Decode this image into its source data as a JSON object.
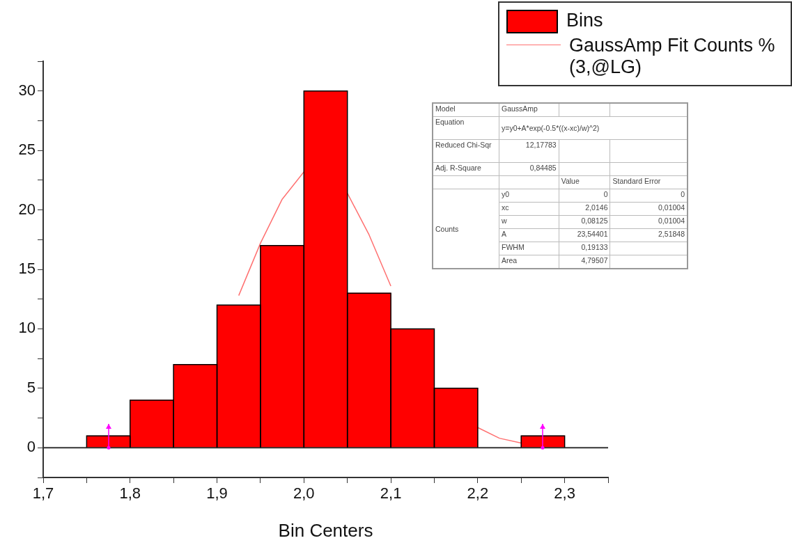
{
  "chart_data": {
    "type": "histogram",
    "xlabel": "Bin Centers",
    "bins": [
      1.75,
      1.8,
      1.85,
      1.9,
      1.95,
      2.0,
      2.05,
      2.1,
      2.15,
      2.2,
      2.25,
      2.3
    ],
    "series": [
      {
        "name": "Bins",
        "color": "#ff0000",
        "values": [
          1,
          4,
          7,
          12,
          17,
          30,
          13,
          10,
          5,
          0,
          1
        ],
        "errors": [
          1,
          null,
          null,
          null,
          null,
          null,
          null,
          null,
          null,
          null,
          1
        ]
      },
      {
        "name": "GaussAmp Fit Counts % (3,@LG)",
        "type": "line",
        "color": "#ff7070",
        "x": [
          1.925,
          1.95,
          1.975,
          2.0,
          2.0146,
          2.025,
          2.05,
          2.075,
          2.1,
          2.125,
          2.15,
          2.175,
          2.2,
          2.225,
          2.25
        ],
        "values": [
          12.8,
          17.2,
          20.9,
          23.2,
          null,
          null,
          21.4,
          17.9,
          13.6,
          null,
          null,
          null,
          1.7,
          0.8,
          0.4
        ]
      }
    ],
    "ref_lines": [
      {
        "axis": "y",
        "value": 0,
        "color": "#333333"
      }
    ],
    "xlim": [
      1.7,
      2.35
    ],
    "xticks": [
      {
        "value": 1.7,
        "label": "1,7"
      },
      {
        "value": 1.75,
        "label": null
      },
      {
        "value": 1.8,
        "label": "1,8"
      },
      {
        "value": 1.85,
        "label": null
      },
      {
        "value": 1.9,
        "label": "1,9"
      },
      {
        "value": 1.95,
        "label": null
      },
      {
        "value": 2.0,
        "label": "2,0"
      },
      {
        "value": 2.05,
        "label": null
      },
      {
        "value": 2.1,
        "label": "2,1"
      },
      {
        "value": 2.15,
        "label": null
      },
      {
        "value": 2.2,
        "label": "2,2"
      },
      {
        "value": 2.25,
        "label": null
      },
      {
        "value": 2.3,
        "label": "2,3"
      },
      {
        "value": 2.35,
        "label": null
      }
    ],
    "ylim": [
      -2.5,
      32.5
    ],
    "yticks": [
      {
        "value": -2.5,
        "label": null
      },
      0,
      {
        "value": 2.5,
        "label": null
      },
      5,
      {
        "value": 7.5,
        "label": null
      },
      10,
      {
        "value": 12.5,
        "label": null
      },
      15,
      {
        "value": 17.5,
        "label": null
      },
      20,
      {
        "value": 22.5,
        "label": null
      },
      25,
      {
        "value": 27.5,
        "label": null
      },
      30,
      {
        "value": 32.5,
        "label": null
      }
    ],
    "grid": false,
    "legend": "top right",
    "marker": "none",
    "line_style": "solid",
    "annotations": [
      "Model",
      "GaussAmp",
      "Equation",
      "y=y0+A*exp(-0.5*((x-xc)/w)^2)",
      "Reduced Chi-Sqr",
      "12,17783",
      "Adj. R-Square",
      "0,84485",
      "Value",
      "Standard Error",
      "Counts",
      "y0",
      "0",
      "0",
      "xc",
      "2,0146",
      "0,01004",
      "w",
      "0,08125",
      "0,01004",
      "A",
      "23,54401",
      "2,51848",
      "FWHM",
      "0,19133",
      "Area",
      "4,79507"
    ]
  }
}
